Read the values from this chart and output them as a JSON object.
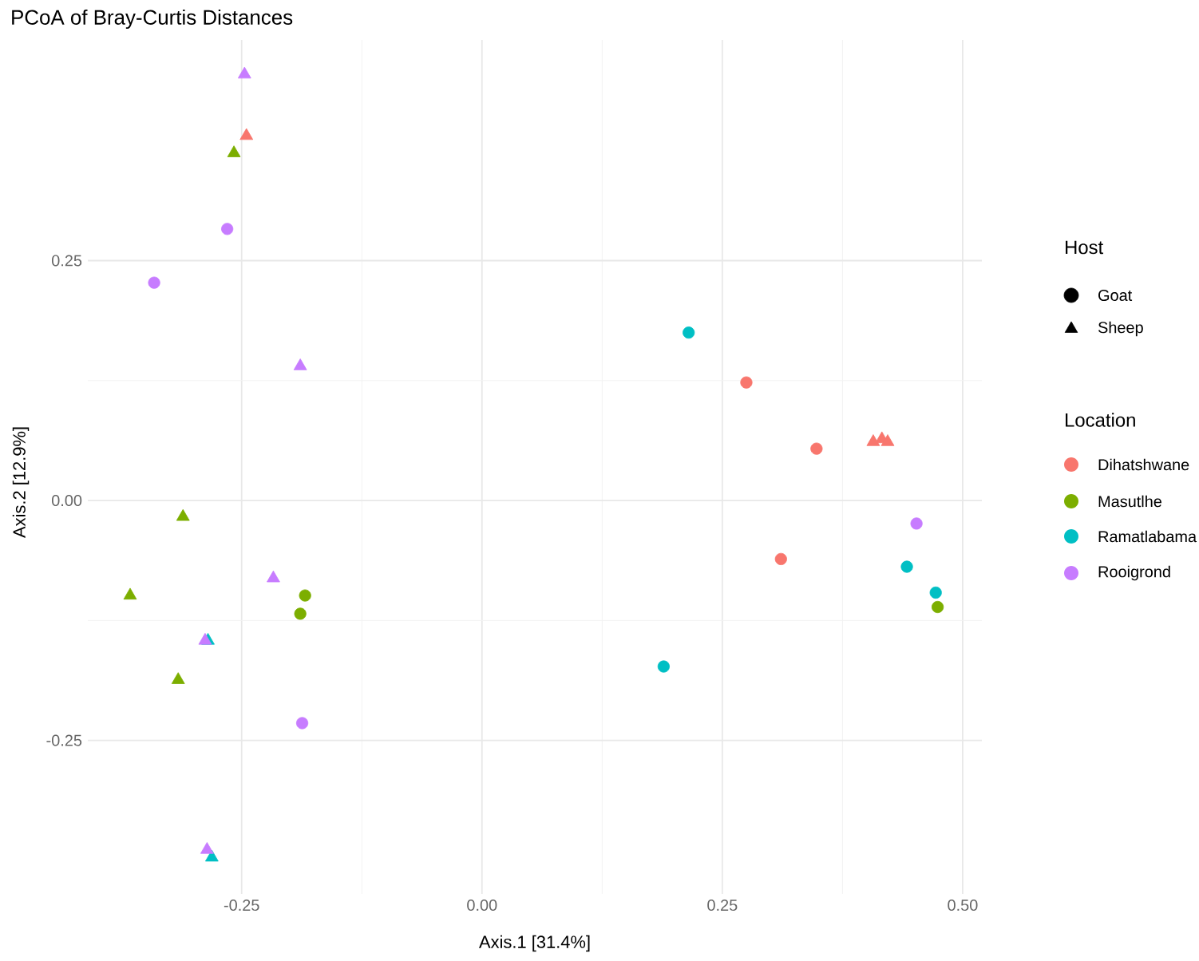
{
  "chart_data": {
    "type": "scatter",
    "title": "PCoA of Bray-Curtis Distances",
    "xlabel": "Axis.1   [31.4%]",
    "ylabel": "Axis.2   [12.9%]",
    "xlim": [
      -0.41,
      0.52
    ],
    "ylim": [
      -0.41,
      0.48
    ],
    "xticks": [
      {
        "value": -0.25,
        "label": "-0.25"
      },
      {
        "value": 0,
        "label": "0.00"
      },
      {
        "value": 0.25,
        "label": "0.25"
      },
      {
        "value": 0.5,
        "label": "0.50"
      }
    ],
    "yticks": [
      {
        "value": -0.25,
        "label": "-0.25"
      },
      {
        "value": 0,
        "label": "0.00"
      },
      {
        "value": 0.25,
        "label": "0.25"
      }
    ],
    "grid": true,
    "legend": "right",
    "legend_title": "Location",
    "annotations": [
      "Host"
    ],
    "series": [
      {
        "name": "Goat",
        "color": "#000000",
        "marker": "circle"
      },
      {
        "name": "Sheep",
        "color": "#000000",
        "marker": "triangle"
      },
      {
        "name": "Dihatshwane",
        "color": "#f8766d",
        "marker": "circle",
        "x": [
          0.275,
          0.348,
          0.311
        ],
        "values": [
          0.123,
          0.054,
          -0.061
        ]
      },
      {
        "color": "#f8766d",
        "marker": "triangle",
        "x": [
          -0.245,
          0.407,
          0.416,
          0.422
        ],
        "values": [
          0.38,
          0.061,
          0.064,
          0.061
        ]
      },
      {
        "name": "Masutlhe",
        "color": "#7cae00",
        "marker": "circle",
        "x": [
          -0.184,
          -0.189,
          0.474
        ],
        "values": [
          -0.099,
          -0.118,
          -0.111
        ]
      },
      {
        "color": "#7cae00",
        "marker": "triangle",
        "x": [
          -0.258,
          -0.311,
          -0.366,
          -0.316
        ],
        "values": [
          0.362,
          -0.017,
          -0.099,
          -0.187
        ]
      },
      {
        "name": "Ramatlabama",
        "color": "#00bfc4",
        "marker": "circle",
        "x": [
          0.215,
          0.442,
          0.472,
          0.189
        ],
        "values": [
          0.175,
          -0.069,
          -0.096,
          -0.173
        ]
      },
      {
        "color": "#00bfc4",
        "marker": "triangle",
        "x": [
          -0.285,
          -0.281
        ],
        "values": [
          -0.146,
          -0.372
        ]
      },
      {
        "name": "Rooigrond",
        "color": "#c77cff",
        "marker": "circle",
        "x": [
          -0.265,
          -0.341,
          -0.187,
          0.452
        ],
        "values": [
          0.283,
          0.227,
          -0.232,
          -0.024
        ]
      },
      {
        "color": "#c77cff",
        "marker": "triangle",
        "x": [
          -0.247,
          -0.189,
          -0.217,
          -0.288,
          -0.286
        ],
        "values": [
          0.444,
          0.14,
          -0.081,
          -0.146,
          -0.364
        ]
      }
    ]
  }
}
